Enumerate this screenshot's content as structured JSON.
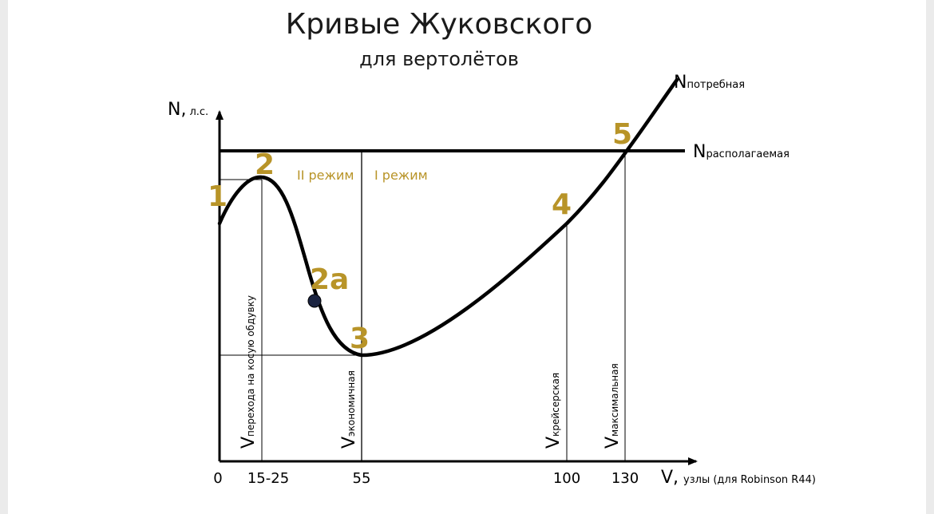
{
  "title": "Кривые Жуковского",
  "subtitle": "для вертолётов",
  "axes": {
    "y_label": "N,",
    "y_unit": "л.с.",
    "x_label": "V,",
    "x_unit": "узлы (для Robinson R44)"
  },
  "ticks": [
    "0",
    "15-25",
    "55",
    "100",
    "130"
  ],
  "curves": {
    "required": {
      "main": "N",
      "sub": "потребная"
    },
    "available": {
      "main": "N",
      "sub": "располагаемая"
    }
  },
  "points": [
    "1",
    "2",
    "2a",
    "3",
    "4",
    "5"
  ],
  "regimes": {
    "second": "II режим",
    "first": "I режим"
  },
  "speeds": [
    {
      "main": "V",
      "sub": "перехода на косую обдувку"
    },
    {
      "main": "V",
      "sub": "экономичная"
    },
    {
      "main": "V",
      "sub": "крейсерская"
    },
    {
      "main": "V",
      "sub": "максимальная"
    }
  ],
  "colors": {
    "accent": "#b89428",
    "line": "#000000",
    "background": "#ffffff"
  }
}
